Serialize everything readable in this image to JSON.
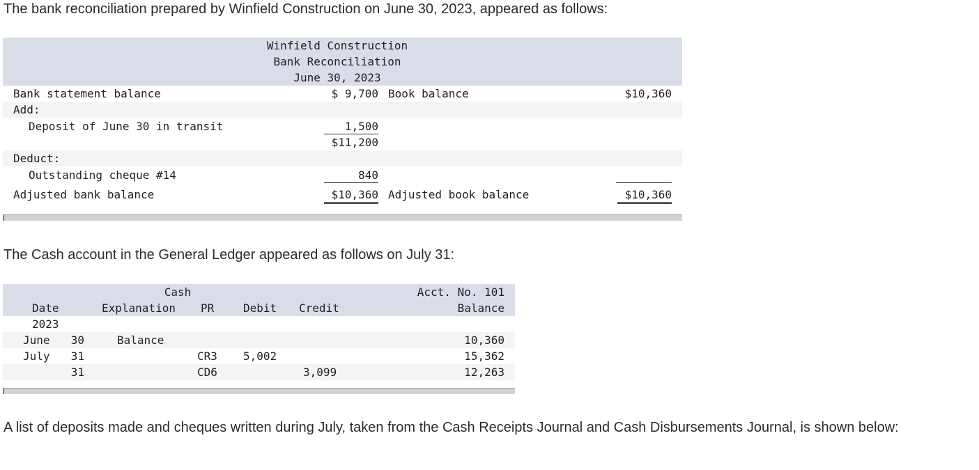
{
  "intro": "The bank reconciliation prepared by Winfield Construction on June 30, 2023, appeared as follows:",
  "recon": {
    "title1": "Winfield Construction",
    "title2": "Bank Reconciliation",
    "title3": "June 30, 2023",
    "bank_stmt_label": "Bank statement balance",
    "bank_stmt_amount": "$ 9,700",
    "book_label": "Book balance",
    "book_amount": "$10,360",
    "add_label": "Add:",
    "deposit_label": "Deposit of June 30 in transit",
    "deposit_amount": "1,500",
    "subtotal": "$11,200",
    "deduct_label": "Deduct:",
    "cheque_label": "Outstanding cheque #14",
    "cheque_amount": "840",
    "adj_bank_label": "Adjusted bank balance",
    "adj_bank_amount": "$10,360",
    "adj_book_label": "Adjusted book balance",
    "adj_book_amount": "$10,360"
  },
  "ledger_intro": "The Cash account in the General Ledger appeared as follows on July 31:",
  "ledger": {
    "title": "Cash",
    "acct": "Acct. No. 101",
    "headers": {
      "date": "Date",
      "explanation": "Explanation",
      "pr": "PR",
      "debit": "Debit",
      "credit": "Credit",
      "balance": "Balance"
    },
    "year": "2023",
    "rows": [
      {
        "month": "June",
        "day": "30",
        "explanation": "Balance",
        "pr": "",
        "debit": "",
        "credit": "",
        "balance": "10,360"
      },
      {
        "month": "July",
        "day": "31",
        "explanation": "",
        "pr": "CR3",
        "debit": "5,002",
        "credit": "",
        "balance": "15,362"
      },
      {
        "month": "",
        "day": "31",
        "explanation": "",
        "pr": "CD6",
        "debit": "",
        "credit": "3,099",
        "balance": "12,263"
      }
    ]
  },
  "outro": "A list of deposits made and cheques written during July, taken from the Cash Receipts Journal and Cash Disbursements Journal, is shown below:"
}
